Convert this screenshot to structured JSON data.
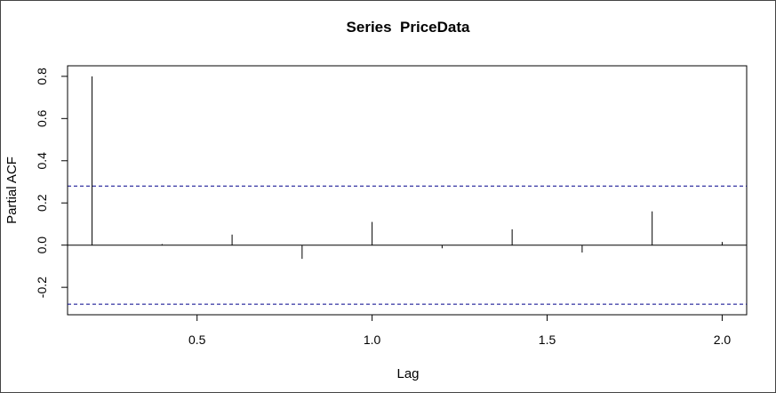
{
  "chart_data": {
    "type": "bar",
    "title": "Series  PriceData",
    "xlabel": "Lag",
    "ylabel": "Partial ACF",
    "xlim": [
      0.13,
      2.07
    ],
    "ylim": [
      -0.33,
      0.85
    ],
    "x_ticks": [
      {
        "value": 0.5,
        "label": "0.5"
      },
      {
        "value": 1.0,
        "label": "1.0"
      },
      {
        "value": 1.5,
        "label": "1.5"
      },
      {
        "value": 2.0,
        "label": "2.0"
      }
    ],
    "y_ticks": [
      {
        "value": -0.2,
        "label": "-0.2"
      },
      {
        "value": 0.0,
        "label": "0.0"
      },
      {
        "value": 0.2,
        "label": "0.2"
      },
      {
        "value": 0.4,
        "label": "0.4"
      },
      {
        "value": 0.6,
        "label": "0.6"
      },
      {
        "value": 0.8,
        "label": "0.8"
      }
    ],
    "x": [
      0.2,
      0.4,
      0.6,
      0.8,
      1.0,
      1.2,
      1.4,
      1.6,
      1.8,
      2.0
    ],
    "values": [
      0.8,
      0.005,
      0.05,
      -0.065,
      0.11,
      -0.015,
      0.075,
      -0.035,
      0.16,
      0.015
    ],
    "confidence_bound": 0.28,
    "grid": false,
    "colors": {
      "spike": "#000000",
      "zero_line": "#000000",
      "confidence_line": "#00008b"
    }
  }
}
